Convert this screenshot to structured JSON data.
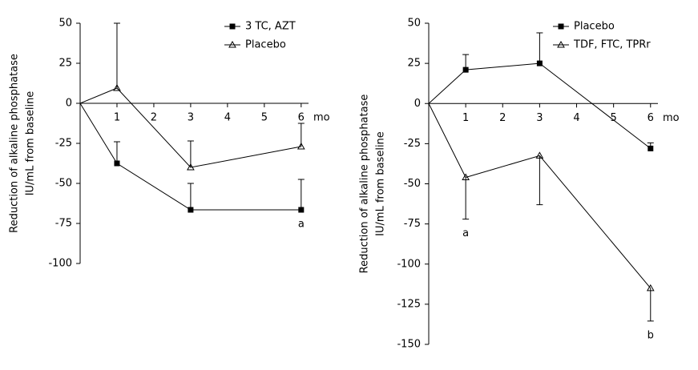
{
  "chart_data": [
    {
      "type": "line",
      "ylabel": [
        "Reduction of alkaline phosphatase",
        "IU/mL from baseline"
      ],
      "xlabel": "mo",
      "x": [
        0,
        1,
        3,
        6
      ],
      "xlim": [
        0,
        6.2
      ],
      "xticks": [
        1,
        2,
        3,
        4,
        5,
        6
      ],
      "ylim": [
        -100,
        50
      ],
      "yticks": [
        50,
        25,
        0,
        -25,
        -50,
        -75,
        -100
      ],
      "legend": "top-right",
      "series": [
        {
          "name": "3 TC, AZT",
          "color": "#000000",
          "marker": "square",
          "error_side": "up",
          "values": [
            0,
            -37.5,
            -66.5,
            -66.5
          ],
          "errors": [
            null,
            13.5,
            16.5,
            19
          ]
        },
        {
          "name": "Placebo",
          "color": "#000000",
          "marker": "triangle",
          "error_side": "up",
          "values": [
            0,
            9.5,
            -40,
            -27
          ],
          "errors": [
            null,
            40.5,
            16.5,
            14.5
          ]
        }
      ],
      "annotations": [
        {
          "text": "a",
          "x": 6
        }
      ]
    },
    {
      "type": "line",
      "ylabel": [
        "Reduction of alkaline phosphatase",
        "IU/mL from baseline"
      ],
      "xlabel": "mo",
      "x": [
        0,
        1,
        3,
        6
      ],
      "xlim": [
        0,
        6.2
      ],
      "xticks": [
        1,
        2,
        3,
        4,
        5,
        6
      ],
      "ylim": [
        -150,
        50
      ],
      "yticks": [
        50,
        25,
        0,
        -25,
        -50,
        -75,
        -100,
        -125,
        -150
      ],
      "legend": "top-right",
      "series": [
        {
          "name": "Placebo",
          "color": "#000000",
          "marker": "square",
          "error_side": "up",
          "values": [
            0,
            21,
            25,
            -28
          ],
          "errors": [
            null,
            9.5,
            19,
            3.5
          ]
        },
        {
          "name": "TDF, FTC, TPRr",
          "color": "#000000",
          "marker": "triangle",
          "error_side": "down",
          "values": [
            0,
            -46,
            -32.5,
            -115
          ],
          "errors": [
            null,
            26,
            30.5,
            20.5
          ]
        }
      ],
      "annotations": [
        {
          "text": "a",
          "x": 1
        },
        {
          "text": "b",
          "x": 6
        }
      ]
    }
  ]
}
